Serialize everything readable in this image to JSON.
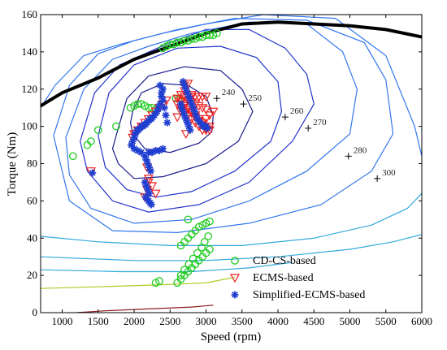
{
  "chart_data": {
    "type": "scatter",
    "title": "",
    "xlabel": "Speed (rpm)",
    "ylabel": "Torque (Nm)",
    "xlim": [
      700,
      6000
    ],
    "ylim": [
      0,
      160
    ],
    "xticks": [
      1000,
      1500,
      2000,
      2500,
      3000,
      3500,
      4000,
      4500,
      5000,
      5500,
      6000
    ],
    "yticks": [
      0,
      20,
      40,
      60,
      80,
      100,
      120,
      140,
      160
    ],
    "grid": false,
    "legend_position": "bottom-center",
    "colors": {
      "max_torque": "#000000",
      "cdcs": "#22cc22",
      "ecms": "#ee2222",
      "simplified": "#1f3fd0",
      "contour_inner": "#1a1a8c",
      "contour_mid": "#2233cc",
      "contour_outer": "#3377ee",
      "contour_low": "#33aadd",
      "contour_lowest": "#aacc22",
      "contour_bottom": "#8b1a1a"
    },
    "max_torque_curve": {
      "x": [
        700,
        1000,
        1500,
        2000,
        2500,
        3000,
        3500,
        4000,
        4500,
        5000,
        5500,
        6000
      ],
      "y": [
        111,
        118,
        126,
        136,
        143,
        150,
        155,
        156,
        155,
        154,
        152,
        148
      ]
    },
    "contour_labels": [
      {
        "label": "240",
        "x": 3150,
        "y": 115
      },
      {
        "label": "250",
        "x": 3520,
        "y": 112
      },
      {
        "label": "260",
        "x": 4100,
        "y": 105
      },
      {
        "label": "270",
        "x": 4420,
        "y": 99
      },
      {
        "label": "280",
        "x": 4980,
        "y": 84
      },
      {
        "label": "300",
        "x": 5380,
        "y": 72
      }
    ],
    "contours": [
      {
        "name": "c240",
        "level": "inner",
        "x": [
          1980,
          2100,
          2400,
          2750,
          3000,
          3100,
          3080,
          2900,
          2500,
          2150,
          1980,
          1950,
          1980
        ],
        "y": [
          108,
          118,
          123,
          122,
          116,
          106,
          97,
          91,
          86,
          88,
          96,
          102,
          108
        ]
      },
      {
        "name": "c250",
        "level": "inner",
        "x": [
          1750,
          1900,
          2200,
          2700,
          3200,
          3500,
          3650,
          3450,
          3000,
          2400,
          2000,
          1780,
          1700,
          1750
        ],
        "y": [
          95,
          115,
          127,
          132,
          130,
          120,
          108,
          92,
          80,
          73,
          72,
          80,
          88,
          95
        ]
      },
      {
        "name": "c260",
        "level": "mid",
        "x": [
          1500,
          1650,
          2000,
          2600,
          3200,
          3700,
          4000,
          4050,
          3900,
          3400,
          2800,
          2300,
          1900,
          1600,
          1500
        ],
        "y": [
          95,
          118,
          133,
          142,
          143,
          137,
          124,
          108,
          92,
          76,
          65,
          62,
          66,
          78,
          95
        ]
      },
      {
        "name": "c270",
        "level": "mid",
        "x": [
          1250,
          1450,
          1800,
          2500,
          3000,
          3600,
          4100,
          4400,
          4500,
          4200,
          3600,
          2900,
          2200,
          1700,
          1350,
          1250
        ],
        "y": [
          92,
          118,
          133,
          145,
          152,
          152,
          142,
          128,
          112,
          92,
          70,
          58,
          54,
          60,
          76,
          92
        ]
      },
      {
        "name": "c280",
        "level": "outer",
        "x": [
          1050,
          1300,
          1700,
          2200,
          2800,
          3600,
          4400,
          4900,
          5100,
          5000,
          4400,
          3600,
          2800,
          2000,
          1400,
          1100,
          1050
        ],
        "y": [
          94,
          120,
          136,
          143,
          150,
          156,
          155,
          140,
          120,
          96,
          76,
          60,
          50,
          48,
          56,
          74,
          94
        ]
      },
      {
        "name": "c300",
        "level": "outer",
        "x": [
          880,
          1100,
          1500,
          2000,
          2600,
          3400,
          4400,
          5200,
          5500,
          5600,
          5300,
          4600,
          3600,
          2600,
          1700,
          1100,
          880
        ],
        "y": [
          95,
          122,
          139,
          146,
          152,
          158,
          157,
          145,
          125,
          96,
          76,
          58,
          48,
          43,
          44,
          60,
          95
        ]
      },
      {
        "name": "c320",
        "level": "outer",
        "x": [
          700,
          900,
          1300,
          1800,
          2400,
          3000,
          3800,
          4800,
          5500,
          5900,
          6000
        ],
        "y": [
          110,
          122,
          138,
          144,
          150,
          155,
          160,
          158,
          138,
          100,
          84
        ]
      },
      {
        "name": "c340",
        "level": "low",
        "x": [
          700,
          1500,
          2500,
          3500,
          4500,
          5300,
          5800,
          6000
        ],
        "y": [
          41,
          38,
          36,
          36,
          40,
          47,
          56,
          64
        ]
      },
      {
        "name": "c360",
        "level": "low",
        "x": [
          700,
          2000,
          3000,
          4000,
          5000,
          5600,
          6000
        ],
        "y": [
          30,
          28,
          28,
          30,
          34,
          38,
          42
        ]
      },
      {
        "name": "c380",
        "level": "low",
        "x": [
          700,
          1800,
          2800,
          3600,
          4200
        ],
        "y": [
          23,
          22,
          22,
          24,
          27
        ]
      },
      {
        "name": "c420",
        "level": "lowest",
        "x": [
          700,
          1600,
          2400,
          3000,
          3400
        ],
        "y": [
          13,
          14,
          15,
          16,
          19
        ]
      },
      {
        "name": "c600",
        "level": "bottom",
        "x": [
          1200,
          1600,
          2200,
          2800,
          3100
        ],
        "y": [
          0,
          1,
          2,
          3,
          4
        ]
      }
    ],
    "legend": [
      {
        "label": "CD-CS-based",
        "marker": "circle"
      },
      {
        "label": "ECMS-based",
        "marker": "triangle"
      },
      {
        "label": "Simplified-ECMS-based",
        "marker": "star"
      }
    ],
    "series": [
      {
        "name": "CD-CS-based",
        "marker": "circle",
        "x": [
          2400,
          2450,
          2500,
          2550,
          2600,
          2650,
          2700,
          2750,
          2800,
          2850,
          2900,
          2950,
          3000,
          3050,
          3100,
          3150,
          2600,
          2650,
          2700,
          2750,
          2800,
          2850,
          2900,
          2950,
          3000,
          3050,
          2650,
          2700,
          2750,
          2800,
          2850,
          2900,
          2950,
          3000,
          3050,
          2750,
          2650,
          2700,
          2760,
          2820,
          2880,
          2940,
          2980,
          3030,
          2300,
          2350,
          1150,
          1350,
          1400,
          1500,
          1750,
          1950,
          2000,
          2050,
          2100,
          2150,
          2200,
          2250,
          2300,
          2580,
          2620
        ],
        "y": [
          142,
          143,
          144,
          144,
          145,
          145,
          146,
          146,
          147,
          147,
          148,
          148,
          149,
          149,
          149,
          150,
          16,
          18,
          20,
          22,
          24,
          26,
          28,
          30,
          32,
          34,
          36,
          38,
          40,
          42,
          44,
          46,
          47,
          48,
          49,
          50,
          20,
          23,
          26,
          29,
          32,
          35,
          38,
          41,
          16,
          17,
          84,
          90,
          92,
          98,
          100,
          110,
          111,
          112,
          112,
          111,
          110,
          110,
          109,
          115,
          115
        ]
      },
      {
        "name": "ECMS-based",
        "marker": "triangle",
        "x": [
          1400,
          1980,
          2000,
          2050,
          2100,
          2150,
          2200,
          2250,
          2300,
          2350,
          2400,
          2450,
          2200,
          2180,
          2150,
          2200,
          2250,
          2300,
          2180,
          2650,
          2700,
          2750,
          2800,
          2850,
          2900,
          2950,
          3000,
          3050,
          3100,
          2700,
          2750,
          2800,
          2850,
          2900,
          2950,
          3000,
          2750,
          2800,
          2850,
          2900,
          2950,
          3000,
          2600,
          2650,
          2700,
          2750,
          2800,
          2850,
          2900,
          2950,
          3000,
          3050,
          2700,
          2750,
          2800,
          2600,
          2650,
          2700,
          2750,
          2700,
          2650,
          2600,
          2650,
          2700,
          2750,
          2800,
          2850,
          2900,
          2950,
          3000,
          3050,
          2720
        ],
        "y": [
          76,
          94,
          96,
          98,
          100,
          102,
          104,
          106,
          108,
          110,
          112,
          114,
          70,
          66,
          62,
          72,
          68,
          64,
          78,
          114,
          112,
          110,
          108,
          106,
          104,
          102,
          104,
          106,
          108,
          116,
          116,
          116,
          116,
          116,
          116,
          116,
          114,
          113,
          112,
          111,
          110,
          109,
          112,
          110,
          108,
          106,
          104,
          102,
          100,
          98,
          98,
          100,
          122,
          123,
          117,
          105,
          108,
          111,
          114,
          119,
          117,
          115,
          113,
          111,
          109,
          107,
          105,
          103,
          101,
          99,
          98,
          96
        ]
      },
      {
        "name": "Simplified-ECMS-based",
        "marker": "star",
        "x": [
          1420,
          1960,
          1980,
          2000,
          2020,
          2040,
          2060,
          2080,
          2100,
          2120,
          2140,
          2160,
          2180,
          2200,
          2220,
          2240,
          2260,
          2280,
          2300,
          2320,
          2340,
          2360,
          2380,
          2400,
          2150,
          2170,
          2190,
          2210,
          2230,
          2150,
          2170,
          2190,
          2210,
          2160,
          2180,
          2200,
          2220,
          2240,
          2200,
          2250,
          2300,
          2350,
          2400,
          2000,
          2050,
          2100,
          2680,
          2700,
          2720,
          2740,
          2760,
          2780,
          2800,
          2820,
          2840,
          2860,
          2880,
          2900,
          2920,
          2940,
          2960,
          2980,
          3000,
          3020,
          2650,
          2660,
          2680,
          2700,
          2720,
          2740,
          2760,
          2780,
          2360,
          2380,
          2400,
          2420,
          2440,
          2460
        ],
        "y": [
          75,
          90,
          92,
          94,
          96,
          98,
          98,
          99,
          100,
          100,
          101,
          101,
          102,
          103,
          104,
          104,
          105,
          106,
          107,
          108,
          110,
          112,
          116,
          120,
          84,
          82,
          80,
          78,
          76,
          70,
          68,
          66,
          64,
          62,
          61,
          60,
          59,
          58,
          86,
          86,
          87,
          87,
          88,
          88,
          87,
          86,
          124,
          122,
          120,
          118,
          116,
          114,
          112,
          110,
          108,
          106,
          104,
          103,
          102,
          101,
          100,
          100,
          100,
          99,
          112,
          110,
          108,
          106,
          104,
          102,
          100,
          98,
          122,
          118,
          114,
          110,
          106,
          102
        ]
      }
    ]
  }
}
